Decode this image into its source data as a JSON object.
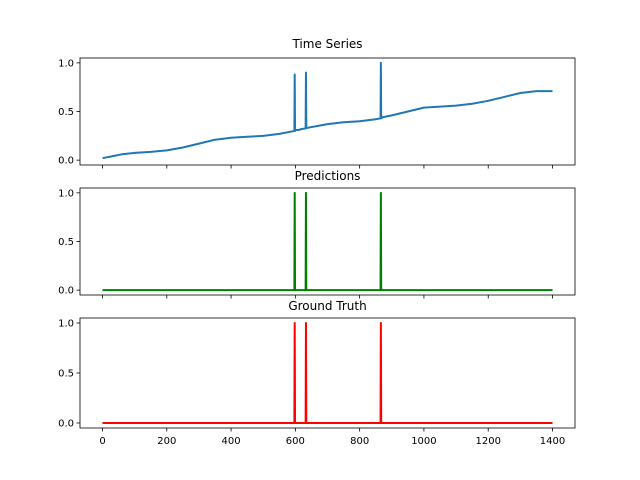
{
  "chart_data": [
    {
      "type": "line",
      "title": "Time Series",
      "xlabel": "",
      "ylabel": "",
      "xlim": [
        -70,
        1470
      ],
      "ylim": [
        -0.05,
        1.05
      ],
      "grid": false,
      "yticks": [
        0.0,
        0.5,
        1.0
      ],
      "xticks": [
        0,
        200,
        400,
        600,
        800,
        1000,
        1200,
        1400
      ],
      "show_xticklabels": false,
      "color": "#1f77b4",
      "series": [
        {
          "x": [
            0,
            30,
            60,
            100,
            150,
            200,
            250,
            300,
            350,
            400,
            450,
            500,
            550,
            597,
            598,
            599,
            600,
            610,
            620,
            630,
            632,
            633,
            634,
            635,
            650,
            700,
            750,
            800,
            850,
            865,
            866,
            867,
            868,
            870,
            900,
            950,
            1000,
            1050,
            1100,
            1150,
            1200,
            1250,
            1300,
            1350,
            1400
          ],
          "values": [
            0.02,
            0.04,
            0.06,
            0.075,
            0.085,
            0.1,
            0.13,
            0.17,
            0.21,
            0.23,
            0.24,
            0.25,
            0.27,
            0.3,
            0.88,
            0.3,
            0.31,
            0.31,
            0.32,
            0.325,
            0.325,
            0.9,
            0.33,
            0.33,
            0.34,
            0.37,
            0.39,
            0.4,
            0.42,
            0.43,
            1.0,
            0.43,
            0.43,
            0.44,
            0.46,
            0.5,
            0.54,
            0.55,
            0.56,
            0.58,
            0.61,
            0.65,
            0.69,
            0.71,
            0.71
          ]
        }
      ]
    },
    {
      "type": "line",
      "title": "Predictions",
      "xlabel": "",
      "ylabel": "",
      "xlim": [
        -70,
        1470
      ],
      "ylim": [
        -0.05,
        1.05
      ],
      "grid": false,
      "yticks": [
        0.0,
        0.5,
        1.0
      ],
      "xticks": [
        0,
        200,
        400,
        600,
        800,
        1000,
        1200,
        1400
      ],
      "show_xticklabels": false,
      "color": "#008000",
      "series": [
        {
          "x": [
            0,
            597,
            598,
            599,
            632,
            633,
            634,
            865,
            866,
            867,
            1400
          ],
          "values": [
            0,
            0,
            1,
            0,
            0,
            1,
            0,
            0,
            1,
            0,
            0
          ]
        }
      ]
    },
    {
      "type": "line",
      "title": "Ground Truth",
      "xlabel": "",
      "ylabel": "",
      "xlim": [
        -70,
        1470
      ],
      "ylim": [
        -0.05,
        1.05
      ],
      "grid": false,
      "yticks": [
        0.0,
        0.5,
        1.0
      ],
      "xticks": [
        0,
        200,
        400,
        600,
        800,
        1000,
        1200,
        1400
      ],
      "show_xticklabels": true,
      "color": "#ff0000",
      "series": [
        {
          "x": [
            0,
            597,
            598,
            599,
            632,
            633,
            634,
            865,
            866,
            867,
            1400
          ],
          "values": [
            0,
            0,
            1,
            0,
            0,
            1,
            0,
            0,
            1,
            0,
            0
          ]
        }
      ]
    }
  ]
}
